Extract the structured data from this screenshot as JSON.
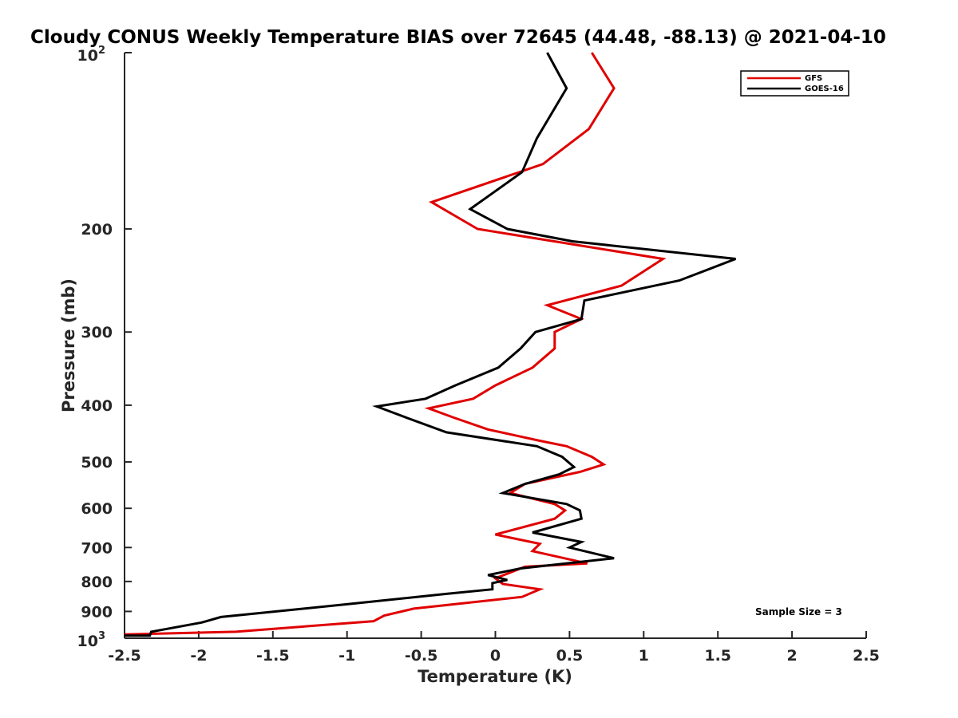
{
  "chart_data": {
    "type": "line",
    "title": "Cloudy CONUS Weekly Temperature BIAS over 72645 (44.48, -88.13) @ 2021-04-10",
    "xlabel": "Temperature (K)",
    "ylabel": "Pressure (mb)",
    "xlim": [
      -2.5,
      2.5
    ],
    "ylim": [
      100,
      1000
    ],
    "y_scale": "log",
    "y_reversed": true,
    "x_ticks": [
      "-2.5",
      "-2",
      "-1.5",
      "-1",
      "-0.5",
      "0",
      "0.5",
      "1",
      "1.5",
      "2",
      "2.5"
    ],
    "y_ticks": [
      "200",
      "300",
      "400",
      "500",
      "600",
      "700",
      "800",
      "900"
    ],
    "y_tick_min_label": {
      "base": "10",
      "exp": "2"
    },
    "y_tick_max_label": {
      "base": "10",
      "exp": "3"
    },
    "legend_position": "top-right",
    "annotation": "Sample Size = 3",
    "series": [
      {
        "name": "GFS",
        "color": "#e00000",
        "points": [
          [
            0.65,
            100
          ],
          [
            0.8,
            115
          ],
          [
            0.63,
            135
          ],
          [
            0.32,
            155
          ],
          [
            -0.43,
            180
          ],
          [
            -0.12,
            200
          ],
          [
            1.13,
            225
          ],
          [
            0.85,
            250
          ],
          [
            0.35,
            270
          ],
          [
            0.58,
            285
          ],
          [
            0.4,
            300
          ],
          [
            0.4,
            320
          ],
          [
            0.25,
            345
          ],
          [
            0.0,
            370
          ],
          [
            -0.15,
            390
          ],
          [
            -0.45,
            405
          ],
          [
            -0.28,
            420
          ],
          [
            -0.05,
            440
          ],
          [
            0.3,
            460
          ],
          [
            0.48,
            470
          ],
          [
            0.65,
            490
          ],
          [
            0.73,
            505
          ],
          [
            0.57,
            520
          ],
          [
            0.2,
            545
          ],
          [
            0.1,
            565
          ],
          [
            0.4,
            590
          ],
          [
            0.47,
            605
          ],
          [
            0.4,
            625
          ],
          [
            0.0,
            665
          ],
          [
            0.3,
            690
          ],
          [
            0.25,
            710
          ],
          [
            0.62,
            745
          ],
          [
            0.2,
            755
          ],
          [
            0.0,
            790
          ],
          [
            0.05,
            808
          ],
          [
            0.3,
            825
          ],
          [
            0.18,
            850
          ],
          [
            -0.55,
            890
          ],
          [
            -0.75,
            915
          ],
          [
            -0.82,
            935
          ],
          [
            -1.75,
            975
          ],
          [
            -2.5,
            985
          ]
        ]
      },
      {
        "name": "GOES-16",
        "color": "#000000",
        "points": [
          [
            0.35,
            100
          ],
          [
            0.48,
            115
          ],
          [
            0.28,
            140
          ],
          [
            0.18,
            160
          ],
          [
            -0.17,
            185
          ],
          [
            0.08,
            200
          ],
          [
            0.52,
            210
          ],
          [
            1.62,
            225
          ],
          [
            1.24,
            245
          ],
          [
            0.6,
            265
          ],
          [
            0.58,
            285
          ],
          [
            0.27,
            300
          ],
          [
            0.17,
            320
          ],
          [
            0.02,
            345
          ],
          [
            -0.27,
            370
          ],
          [
            -0.47,
            390
          ],
          [
            -0.8,
            402
          ],
          [
            -0.6,
            420
          ],
          [
            -0.33,
            445
          ],
          [
            0.28,
            470
          ],
          [
            0.45,
            490
          ],
          [
            0.53,
            510
          ],
          [
            0.43,
            525
          ],
          [
            0.2,
            545
          ],
          [
            0.05,
            565
          ],
          [
            0.48,
            590
          ],
          [
            0.57,
            605
          ],
          [
            0.58,
            625
          ],
          [
            0.25,
            660
          ],
          [
            0.58,
            685
          ],
          [
            0.5,
            700
          ],
          [
            0.8,
            730
          ],
          [
            0.17,
            760
          ],
          [
            -0.05,
            780
          ],
          [
            0.08,
            795
          ],
          [
            -0.02,
            805
          ],
          [
            -0.02,
            825
          ],
          [
            -0.33,
            840
          ],
          [
            -1.0,
            875
          ],
          [
            -1.85,
            920
          ],
          [
            -1.98,
            940
          ],
          [
            -2.32,
            975
          ],
          [
            -2.33,
            990
          ],
          [
            -2.5,
            990
          ]
        ]
      }
    ]
  }
}
